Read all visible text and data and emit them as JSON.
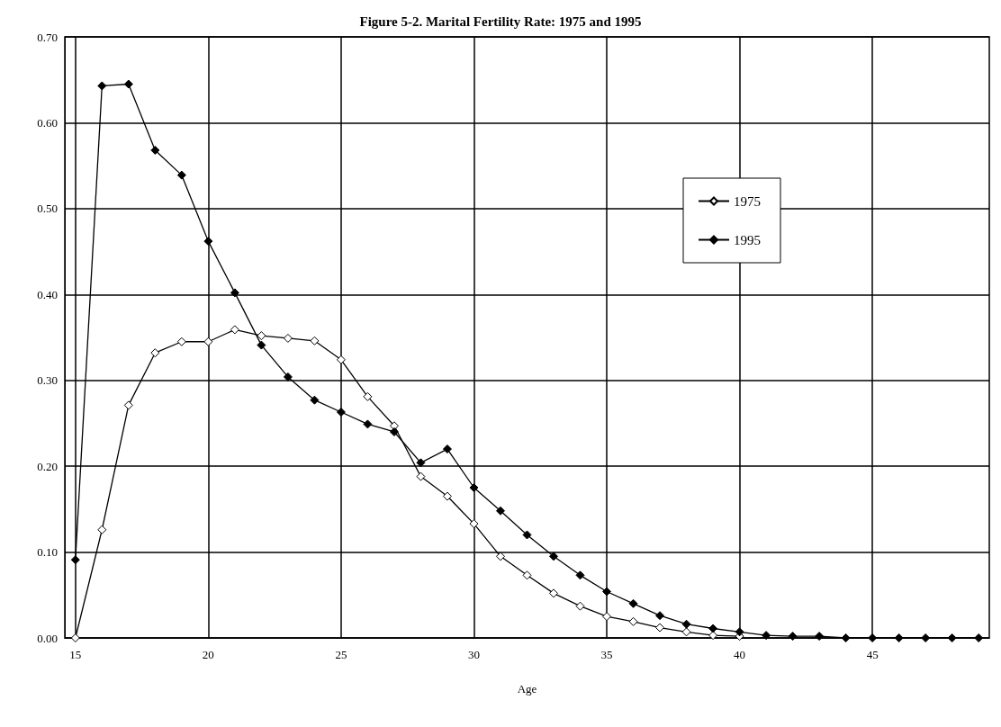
{
  "chart_data": {
    "type": "line",
    "title": "Figure 5-2. Marital Fertility Rate: 1975 and 1995",
    "xlabel": "Age",
    "x": [
      15,
      16,
      17,
      18,
      19,
      20,
      21,
      22,
      23,
      24,
      25,
      26,
      27,
      28,
      29,
      30,
      31,
      32,
      33,
      34,
      35,
      36,
      37,
      38,
      39,
      40,
      41,
      42,
      43,
      44,
      45,
      46,
      47,
      48,
      49
    ],
    "series": [
      {
        "name": "1975",
        "color": "#000000",
        "values": [
          0.0,
          0.126,
          0.271,
          0.332,
          0.345,
          0.345,
          0.359,
          0.352,
          0.349,
          0.346,
          0.324,
          0.281,
          0.247,
          0.188,
          0.165,
          0.133,
          0.095,
          0.073,
          0.052,
          0.037,
          0.025,
          0.019,
          0.012,
          0.007,
          0.003,
          0.002,
          null,
          null,
          null,
          null,
          null,
          null,
          null,
          null,
          null
        ]
      },
      {
        "name": "1995",
        "color": "#000000",
        "values": [
          0.091,
          0.643,
          0.645,
          0.568,
          0.539,
          0.462,
          0.402,
          0.341,
          0.304,
          0.277,
          0.263,
          0.249,
          0.24,
          0.204,
          0.22,
          0.175,
          0.148,
          0.12,
          0.095,
          0.073,
          0.054,
          0.04,
          0.026,
          0.016,
          0.011,
          0.007,
          0.003,
          0.002,
          0.002,
          0.0,
          0.0,
          0.0,
          0.0,
          0.0,
          0.0
        ]
      }
    ],
    "xlim": [
      14.6,
      49.4
    ],
    "xticks": [
      15,
      20,
      25,
      30,
      35,
      40,
      45
    ],
    "ylim": [
      0,
      0.7
    ],
    "yticks": [
      {
        "value": 0,
        "label": "0.00"
      },
      {
        "value": 0.1,
        "label": "0.10"
      },
      {
        "value": 0.2,
        "label": "0.20"
      },
      {
        "value": 0.3,
        "label": "0.30"
      },
      {
        "value": 0.4,
        "label": "0.40"
      },
      {
        "value": 0.5,
        "label": "0.50"
      },
      {
        "value": 0.6,
        "label": "0.60"
      },
      {
        "value": 0.7,
        "label": "0.70"
      }
    ],
    "grid": true,
    "legend": "top right",
    "marker": "diamond",
    "line_style": "solid"
  }
}
